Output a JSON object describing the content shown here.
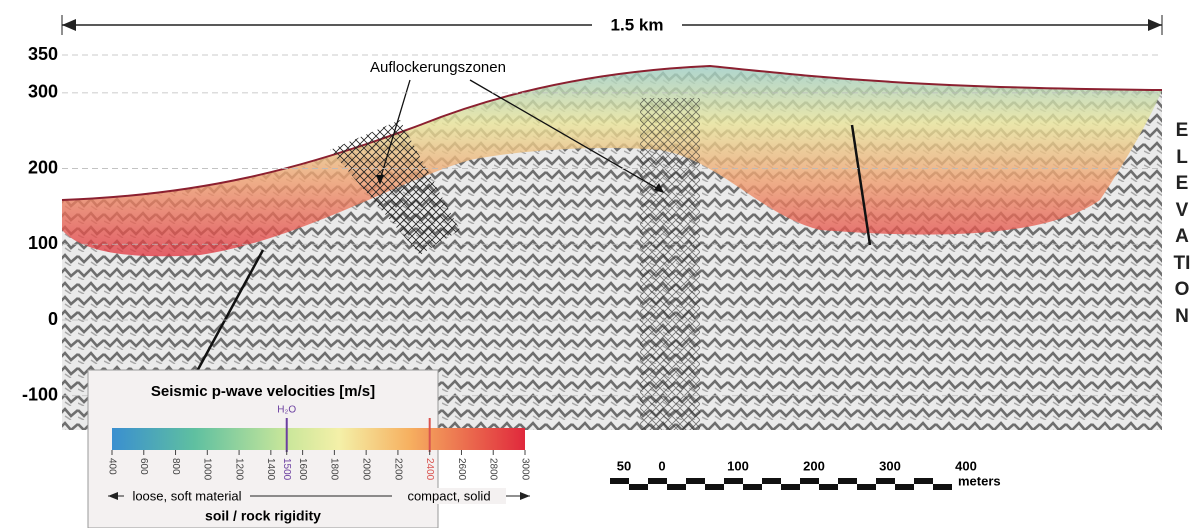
{
  "header": {
    "width_label": "1.5 km"
  },
  "annotation": "Auflockerungszonen",
  "elevation": {
    "label": "ELEVATION",
    "ticks": [
      350,
      300,
      200,
      100,
      0,
      -100
    ]
  },
  "legend": {
    "title": "Seismic p-wave velocities [m/s]",
    "marker": "H₂O",
    "ticks": [
      400,
      600,
      800,
      1000,
      1200,
      1400,
      1500,
      1600,
      1800,
      2000,
      2200,
      2400,
      2600,
      2800,
      3000
    ],
    "lines": [
      {
        "value": 1500,
        "color": "#6b3fa0"
      },
      {
        "value": 2400,
        "color": "#d9534f"
      }
    ],
    "left_label": "loose, soft material",
    "right_label": "compact, solid",
    "caption": "soil / rock rigidity"
  },
  "scale": {
    "ticks": [
      "50",
      "0",
      "100",
      "200",
      "300",
      "400"
    ],
    "unit": "meters"
  }
}
